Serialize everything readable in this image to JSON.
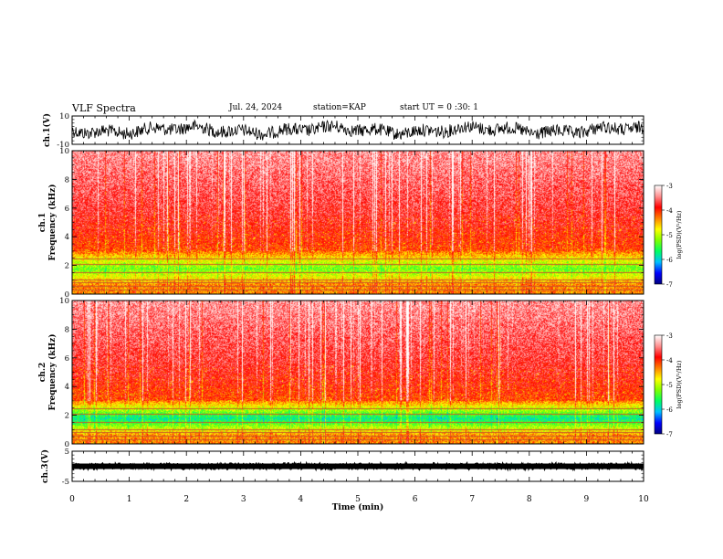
{
  "header": {
    "title": "VLF Spectra",
    "date": "Jul. 24, 2024",
    "station": "station=KAP",
    "start": "start UT =  0 :30: 1"
  },
  "chart_data": [
    {
      "type": "line",
      "panel": "ch1-waveform",
      "ylabel": "ch.1(V)",
      "ylim": [
        -10,
        10
      ],
      "yticks": [
        "10",
        "-10"
      ],
      "xlim": [
        0,
        10
      ],
      "color": "#000000"
    },
    {
      "type": "heatmap",
      "panel": "ch1-spectrogram",
      "ylabel_line1": "ch.1",
      "ylabel_line2": "Frequency (kHz)",
      "ylim": [
        0,
        10
      ],
      "yticks": [
        "0",
        "2",
        "4",
        "6",
        "8",
        "10"
      ],
      "xlim": [
        0,
        10
      ],
      "colorbar": {
        "label": "log(PSD)(V²/Hz)",
        "range": [
          -7,
          -3
        ],
        "ticks": [
          "-3",
          "-4",
          "-5",
          "-6",
          "-7"
        ],
        "colors": [
          "#000080",
          "#0000ff",
          "#00c0ff",
          "#00ff60",
          "#80ff00",
          "#ffff00",
          "#ff8000",
          "#ff0000",
          "#ff9090",
          "#ffffff"
        ]
      }
    },
    {
      "type": "heatmap",
      "panel": "ch2-spectrogram",
      "ylabel_line1": "ch.2",
      "ylabel_line2": "Frequency (kHz)",
      "ylim": [
        0,
        10
      ],
      "yticks": [
        "0",
        "2",
        "4",
        "6",
        "8",
        "10"
      ],
      "xlim": [
        0,
        10
      ],
      "colorbar": {
        "label": "log(PSD)(V²/Hz)",
        "range": [
          -7,
          -3
        ],
        "ticks": [
          "-3",
          "-4",
          "-5",
          "-6",
          "-7"
        ],
        "colors": [
          "#000080",
          "#0000ff",
          "#00c0ff",
          "#00ff60",
          "#80ff00",
          "#ffff00",
          "#ff8000",
          "#ff0000",
          "#ff9090",
          "#ffffff"
        ]
      }
    },
    {
      "type": "line",
      "panel": "ch3-waveform",
      "ylabel": "ch.3(V)",
      "ylim": [
        -5,
        5
      ],
      "yticks": [
        "5",
        "-5"
      ],
      "xlim": [
        0,
        10
      ],
      "xlabel": "Time (min)",
      "xticks": [
        "0",
        "1",
        "2",
        "3",
        "4",
        "5",
        "6",
        "7",
        "8",
        "9",
        "10"
      ],
      "color": "#000000"
    }
  ]
}
